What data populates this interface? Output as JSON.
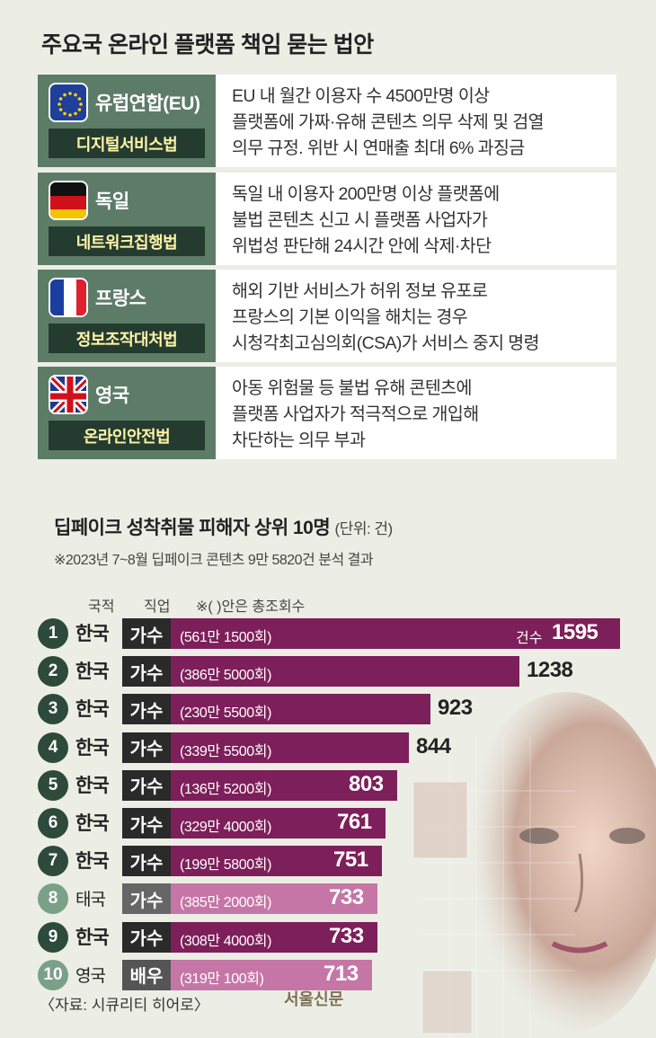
{
  "title": "주요국 온라인 플랫폼 책임 묻는 법안",
  "laws": [
    {
      "flag": "eu-flag-icon",
      "country": "유럽연합(EU)",
      "law": "디지털서비스법",
      "lines": [
        "EU 내 월간 이용자 수 4500만명 이상",
        "플랫폼에 가짜·유해 콘텐츠 의무 삭제 및 검열",
        "의무 규정. 위반 시 연매출 최대 6% 과징금"
      ]
    },
    {
      "flag": "germany-flag-icon",
      "country": "독일",
      "law": "네트워크집행법",
      "lines": [
        "독일 내 이용자 200만명 이상 플랫폼에",
        "불법 콘텐츠 신고 시 플랫폼 사업자가",
        "위법성 판단해 24시간 안에 삭제·차단"
      ]
    },
    {
      "flag": "france-flag-icon",
      "country": "프랑스",
      "law": "정보조작대처법",
      "lines": [
        "해외 기반 서비스가 허위 정보 유포로",
        "프랑스의 기본 이익을 해치는 경우",
        "시청각최고심의회(CSA)가 서비스 중지 명령"
      ]
    },
    {
      "flag": "uk-flag-icon",
      "country": "영국",
      "law": "온라인안전법",
      "lines": [
        "아동 위험물 등 불법 유해 콘텐츠에",
        "플랫폼 사업자가 적극적으로 개입해",
        "차단하는 의무 부과"
      ]
    }
  ],
  "chart_title": "딥페이크 성착취물 피해자 상위 10명",
  "chart_unit": "(단위: 건)",
  "chart_note": "※2023년 7~8월 딥페이크 콘텐츠 9만 5820건 분석 결과",
  "col_headers": {
    "nationality": "국적",
    "job": "직업",
    "views_note": "※( )안은 총조회수"
  },
  "count_label": "건수",
  "chart_data": {
    "type": "bar",
    "title": "딥페이크 성착취물 피해자 상위 10명",
    "unit": "건",
    "xlim": [
      0,
      1595
    ],
    "colors": {
      "korea": "#7d1f5a",
      "other": "#c576a6",
      "circle_korea": "#2d4a3b",
      "circle_other": "#7aa08a",
      "job_singer": "#2a2a2a",
      "job_actor": "#555555"
    },
    "rows": [
      {
        "rank": "1",
        "nationality": "한국",
        "job": "가수",
        "views": "(561만 1500회)",
        "value": 1595
      },
      {
        "rank": "2",
        "nationality": "한국",
        "job": "가수",
        "views": "(386만 5000회)",
        "value": 1238
      },
      {
        "rank": "3",
        "nationality": "한국",
        "job": "가수",
        "views": "(230만 5500회)",
        "value": 923
      },
      {
        "rank": "4",
        "nationality": "한국",
        "job": "가수",
        "views": "(339만 5500회)",
        "value": 844
      },
      {
        "rank": "5",
        "nationality": "한국",
        "job": "가수",
        "views": "(136만 5200회)",
        "value": 803
      },
      {
        "rank": "6",
        "nationality": "한국",
        "job": "가수",
        "views": "(329만 4000회)",
        "value": 761
      },
      {
        "rank": "7",
        "nationality": "한국",
        "job": "가수",
        "views": "(199만 5800회)",
        "value": 751
      },
      {
        "rank": "8",
        "nationality": "태국",
        "job": "가수",
        "views": "(385만 2000회)",
        "value": 733
      },
      {
        "rank": "9",
        "nationality": "한국",
        "job": "가수",
        "views": "(308만 4000회)",
        "value": 733
      },
      {
        "rank": "10",
        "nationality": "영국",
        "job": "배우",
        "views": "(319만 100회)",
        "value": 713
      }
    ]
  },
  "source": "〈자료: 시큐리티 히어로〉",
  "logo": "서울신문"
}
